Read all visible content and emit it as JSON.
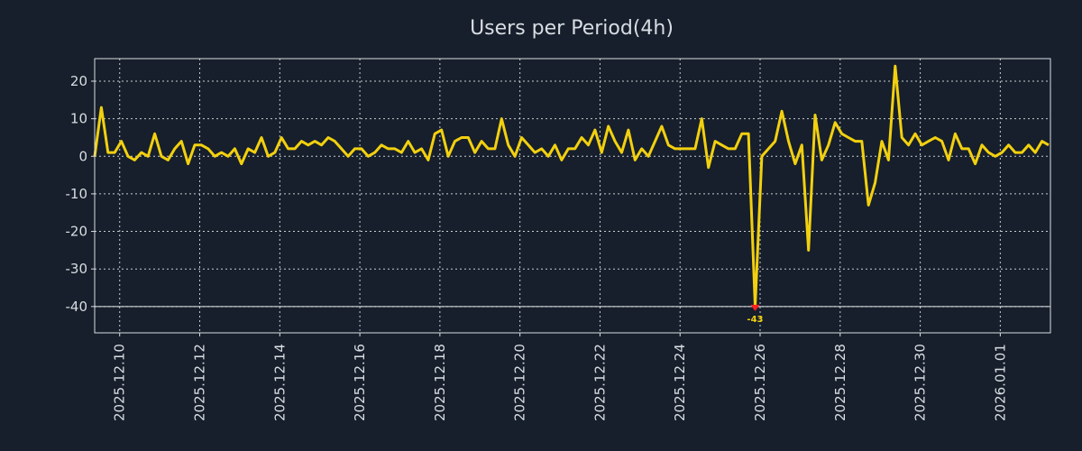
{
  "chart_data": {
    "type": "line",
    "title": "Users per Period(4h)",
    "xlabel": "",
    "ylabel": "",
    "start": "2025-12-09T09:00:00Z",
    "step_hours": 4,
    "series": [
      {
        "name": "Users per Period(4h)",
        "color": "#f2d00f",
        "values": [
          0,
          13,
          1,
          1,
          4,
          0,
          -1,
          1,
          0,
          6,
          0,
          -1,
          2,
          4,
          -2,
          3,
          3,
          2,
          0,
          1,
          0,
          2,
          -2,
          2,
          1,
          5,
          0,
          1,
          5,
          2,
          2,
          4,
          3,
          4,
          3,
          5,
          4,
          2,
          0,
          2,
          2,
          0,
          1,
          3,
          2,
          2,
          1,
          4,
          1,
          2,
          -1,
          6,
          7,
          0,
          4,
          5,
          5,
          1,
          4,
          2,
          2,
          10,
          3,
          0,
          5,
          3,
          1,
          2,
          0,
          3,
          -1,
          2,
          2,
          5,
          3,
          7,
          1,
          8,
          4,
          1,
          7,
          -1,
          2,
          0,
          4,
          8,
          3,
          2,
          2,
          2,
          2,
          10,
          -3,
          4,
          3,
          2,
          2,
          6,
          6,
          -43,
          0,
          2,
          4,
          12,
          4,
          -2,
          3,
          -25,
          11,
          -1,
          3,
          9,
          6,
          5,
          4,
          4,
          -13,
          -7,
          4,
          -1,
          24,
          5,
          3,
          6,
          3,
          4,
          5,
          4,
          -1,
          6,
          2,
          2,
          -2,
          3,
          1,
          0,
          1,
          3,
          1,
          1,
          3,
          1,
          4,
          3
        ]
      }
    ],
    "ylim": [
      -47,
      26
    ],
    "clip_min": -40,
    "y_ticks": [
      "-40",
      "-30",
      "-20",
      "-10",
      "0",
      "10",
      "20"
    ],
    "x_ticks": [
      "2025.12.10",
      "2025.12.12",
      "2025.12.14",
      "2025.12.16",
      "2025.12.18",
      "2025.12.20",
      "2025.12.22",
      "2025.12.24",
      "2025.12.26",
      "2025.12.28",
      "2025.12.30",
      "2026.01.01"
    ],
    "annotation": {
      "label": "-43",
      "marker_color": "#ff2020"
    },
    "grid": true,
    "legend": "none",
    "background": "#161f2b"
  }
}
